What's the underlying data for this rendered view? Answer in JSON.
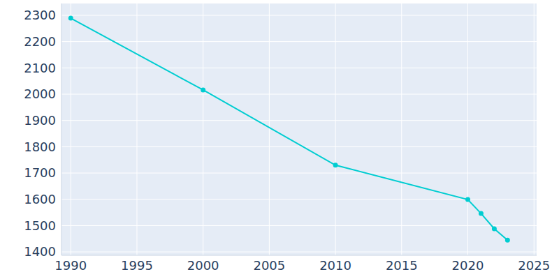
{
  "chart_data": {
    "type": "line",
    "x": [
      1990,
      2000,
      2010,
      2020,
      2021,
      2022,
      2023
    ],
    "values": [
      2289,
      2016,
      1730,
      1599,
      1546,
      1488,
      1445
    ],
    "color": "#00cdd1",
    "xlim": [
      1989.3,
      2025.2
    ],
    "xticks": [
      1990,
      1995,
      2000,
      2005,
      2010,
      2015,
      2020,
      2025
    ],
    "ylim": [
      1387,
      2345
    ],
    "yticks": [
      1400,
      1500,
      1600,
      1700,
      1800,
      1900,
      2000,
      2100,
      2200,
      2300
    ],
    "grid": true,
    "marker": "circle"
  }
}
